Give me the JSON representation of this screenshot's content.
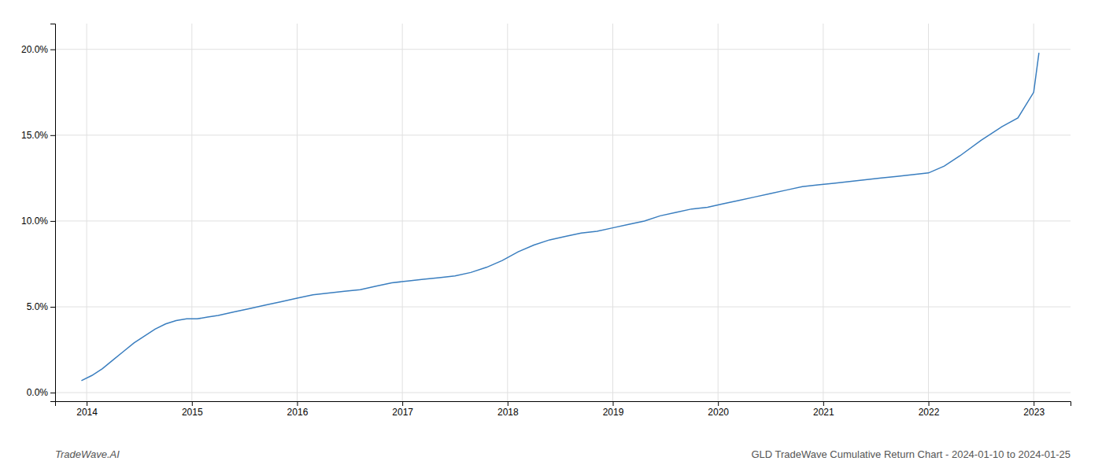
{
  "chart_data": {
    "type": "line",
    "title": "GLD TradeWave Cumulative Return Chart - 2024-01-10 to 2024-01-25",
    "annotations": [
      "TradeWave.AI"
    ],
    "color": "#3a7ebf",
    "grid": true,
    "x": [
      2013.95,
      2014.05,
      2014.15,
      2014.25,
      2014.35,
      2014.45,
      2014.55,
      2014.65,
      2014.75,
      2014.85,
      2014.95,
      2015.05,
      2015.15,
      2015.25,
      2015.4,
      2015.55,
      2015.7,
      2015.85,
      2016.0,
      2016.15,
      2016.3,
      2016.45,
      2016.6,
      2016.75,
      2016.9,
      2017.05,
      2017.2,
      2017.35,
      2017.5,
      2017.65,
      2017.8,
      2017.95,
      2018.1,
      2018.25,
      2018.4,
      2018.55,
      2018.7,
      2018.85,
      2019.0,
      2019.15,
      2019.3,
      2019.45,
      2019.6,
      2019.75,
      2019.9,
      2020.05,
      2020.2,
      2020.35,
      2020.5,
      2020.65,
      2020.8,
      2020.95,
      2021.1,
      2021.25,
      2021.4,
      2021.55,
      2021.7,
      2021.85,
      2022.0,
      2022.15,
      2022.3,
      2022.5,
      2022.7,
      2022.85,
      2023.0,
      2023.05
    ],
    "values": [
      0.007,
      0.01,
      0.014,
      0.019,
      0.024,
      0.029,
      0.033,
      0.037,
      0.04,
      0.042,
      0.043,
      0.043,
      0.044,
      0.045,
      0.047,
      0.049,
      0.051,
      0.053,
      0.055,
      0.057,
      0.058,
      0.059,
      0.06,
      0.062,
      0.064,
      0.065,
      0.066,
      0.067,
      0.068,
      0.07,
      0.073,
      0.077,
      0.082,
      0.086,
      0.089,
      0.091,
      0.093,
      0.094,
      0.096,
      0.098,
      0.1,
      0.103,
      0.105,
      0.107,
      0.108,
      0.11,
      0.112,
      0.114,
      0.116,
      0.118,
      0.12,
      0.121,
      0.122,
      0.123,
      0.124,
      0.125,
      0.126,
      0.127,
      0.128,
      0.132,
      0.138,
      0.147,
      0.155,
      0.16,
      0.175,
      0.198
    ],
    "xlim": [
      2013.7,
      2023.35
    ],
    "ylim": [
      -0.005,
      0.215
    ],
    "xticks": [
      2014,
      2015,
      2016,
      2017,
      2018,
      2019,
      2020,
      2021,
      2022,
      2023
    ],
    "yticks": [
      {
        "value": 0.0,
        "label": "0.0%"
      },
      {
        "value": 0.05,
        "label": "5.0%"
      },
      {
        "value": 0.1,
        "label": "10.0%"
      },
      {
        "value": 0.15,
        "label": "15.0%"
      },
      {
        "value": 0.2,
        "label": "20.0%"
      }
    ]
  }
}
